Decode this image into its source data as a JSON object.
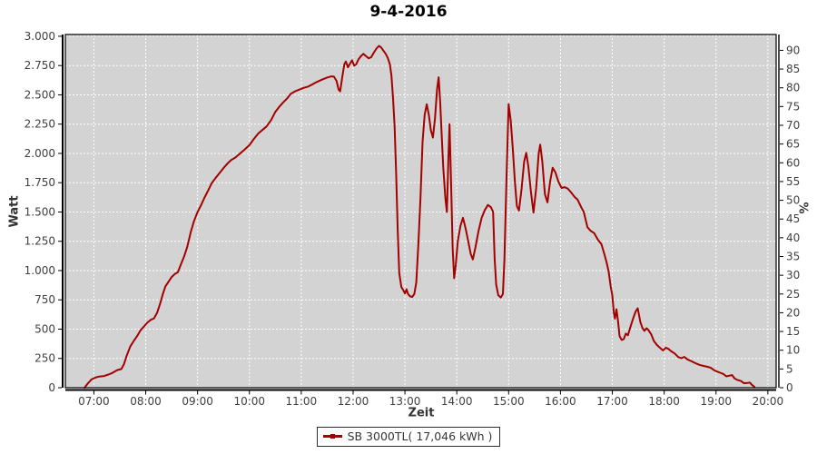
{
  "title": "9-4-2016",
  "legend": {
    "label": "SB 3000TL( 17,046 kWh )"
  },
  "chart_data": {
    "type": "line",
    "title": "9-4-2016",
    "xlabel": "Zeit",
    "ylabel_left": "Watt",
    "ylabel_right": "%",
    "legend_position": "bottom-center",
    "grid": true,
    "plot_bg": "#d3d3d3",
    "grid_color": "#ffffff",
    "axis_color": "#000000",
    "tick_text_color": "#404040",
    "series_color": "#a40000",
    "xlim": [
      6.45,
      20.16
    ],
    "ylim_watt": [
      0,
      3015
    ],
    "watt_per_percent": 32,
    "x_tick_hours": [
      7,
      8,
      9,
      10,
      11,
      12,
      13,
      14,
      15,
      16,
      17,
      18,
      19,
      20
    ],
    "x_tick_labels": [
      "07:00",
      "08:00",
      "09:00",
      "10:00",
      "11:00",
      "12:00",
      "13:00",
      "14:00",
      "15:00",
      "16:00",
      "17:00",
      "18:00",
      "19:00",
      "20:00"
    ],
    "y_tick_watts": [
      0,
      250,
      500,
      750,
      1000,
      1250,
      1500,
      1750,
      2000,
      2250,
      2500,
      2750,
      3000
    ],
    "y_tick_watt_labels": [
      "0",
      "250",
      "500",
      "750",
      "1.000",
      "1.250",
      "1.500",
      "1.750",
      "2.000",
      "2.250",
      "2.500",
      "2.750",
      "3.000"
    ],
    "y_tick_percents": [
      0,
      5,
      10,
      15,
      20,
      25,
      30,
      35,
      40,
      45,
      50,
      55,
      60,
      65,
      70,
      75,
      80,
      85,
      90
    ],
    "series": [
      {
        "name": "SB 3000TL( 17,046 kWh )",
        "color": "#a40000",
        "points": [
          [
            6.82,
            0
          ],
          [
            6.88,
            35
          ],
          [
            6.95,
            70
          ],
          [
            7.02,
            85
          ],
          [
            7.1,
            95
          ],
          [
            7.2,
            100
          ],
          [
            7.28,
            112
          ],
          [
            7.35,
            125
          ],
          [
            7.45,
            150
          ],
          [
            7.53,
            160
          ],
          [
            7.58,
            200
          ],
          [
            7.63,
            270
          ],
          [
            7.7,
            350
          ],
          [
            7.77,
            400
          ],
          [
            7.84,
            445
          ],
          [
            7.9,
            490
          ],
          [
            7.97,
            525
          ],
          [
            8.03,
            555
          ],
          [
            8.1,
            580
          ],
          [
            8.16,
            592
          ],
          [
            8.22,
            640
          ],
          [
            8.28,
            720
          ],
          [
            8.33,
            800
          ],
          [
            8.38,
            865
          ],
          [
            8.44,
            905
          ],
          [
            8.5,
            945
          ],
          [
            8.56,
            970
          ],
          [
            8.62,
            985
          ],
          [
            8.68,
            1055
          ],
          [
            8.74,
            1120
          ],
          [
            8.8,
            1200
          ],
          [
            8.87,
            1330
          ],
          [
            8.93,
            1420
          ],
          [
            9.0,
            1500
          ],
          [
            9.07,
            1560
          ],
          [
            9.13,
            1620
          ],
          [
            9.2,
            1680
          ],
          [
            9.27,
            1745
          ],
          [
            9.33,
            1780
          ],
          [
            9.42,
            1830
          ],
          [
            9.5,
            1875
          ],
          [
            9.58,
            1915
          ],
          [
            9.65,
            1945
          ],
          [
            9.73,
            1965
          ],
          [
            9.82,
            2000
          ],
          [
            9.9,
            2030
          ],
          [
            10.0,
            2070
          ],
          [
            10.08,
            2120
          ],
          [
            10.17,
            2170
          ],
          [
            10.25,
            2200
          ],
          [
            10.33,
            2230
          ],
          [
            10.42,
            2285
          ],
          [
            10.5,
            2355
          ],
          [
            10.58,
            2400
          ],
          [
            10.65,
            2435
          ],
          [
            10.73,
            2470
          ],
          [
            10.8,
            2510
          ],
          [
            10.88,
            2530
          ],
          [
            10.97,
            2545
          ],
          [
            11.05,
            2560
          ],
          [
            11.13,
            2570
          ],
          [
            11.22,
            2590
          ],
          [
            11.3,
            2610
          ],
          [
            11.4,
            2630
          ],
          [
            11.5,
            2648
          ],
          [
            11.58,
            2658
          ],
          [
            11.63,
            2655
          ],
          [
            11.68,
            2620
          ],
          [
            11.72,
            2545
          ],
          [
            11.75,
            2530
          ],
          [
            11.79,
            2650
          ],
          [
            11.83,
            2760
          ],
          [
            11.86,
            2785
          ],
          [
            11.9,
            2735
          ],
          [
            11.94,
            2765
          ],
          [
            11.98,
            2795
          ],
          [
            12.02,
            2750
          ],
          [
            12.06,
            2760
          ],
          [
            12.1,
            2800
          ],
          [
            12.15,
            2830
          ],
          [
            12.2,
            2850
          ],
          [
            12.25,
            2830
          ],
          [
            12.3,
            2812
          ],
          [
            12.35,
            2822
          ],
          [
            12.4,
            2860
          ],
          [
            12.45,
            2895
          ],
          [
            12.5,
            2918
          ],
          [
            12.54,
            2905
          ],
          [
            12.58,
            2880
          ],
          [
            12.63,
            2850
          ],
          [
            12.67,
            2815
          ],
          [
            12.71,
            2760
          ],
          [
            12.74,
            2665
          ],
          [
            12.77,
            2480
          ],
          [
            12.8,
            2230
          ],
          [
            12.83,
            1830
          ],
          [
            12.86,
            1350
          ],
          [
            12.89,
            980
          ],
          [
            12.93,
            860
          ],
          [
            12.97,
            830
          ],
          [
            13.0,
            805
          ],
          [
            13.03,
            840
          ],
          [
            13.06,
            800
          ],
          [
            13.1,
            780
          ],
          [
            13.14,
            775
          ],
          [
            13.18,
            800
          ],
          [
            13.22,
            900
          ],
          [
            13.26,
            1230
          ],
          [
            13.3,
            1620
          ],
          [
            13.34,
            2100
          ],
          [
            13.38,
            2330
          ],
          [
            13.42,
            2420
          ],
          [
            13.46,
            2330
          ],
          [
            13.5,
            2200
          ],
          [
            13.54,
            2135
          ],
          [
            13.58,
            2300
          ],
          [
            13.62,
            2550
          ],
          [
            13.65,
            2650
          ],
          [
            13.68,
            2440
          ],
          [
            13.71,
            2150
          ],
          [
            13.74,
            1880
          ],
          [
            13.78,
            1620
          ],
          [
            13.81,
            1500
          ],
          [
            13.84,
            2000
          ],
          [
            13.86,
            2250
          ],
          [
            13.89,
            1750
          ],
          [
            13.92,
            1200
          ],
          [
            13.95,
            935
          ],
          [
            13.98,
            1050
          ],
          [
            14.02,
            1250
          ],
          [
            14.07,
            1380
          ],
          [
            14.12,
            1450
          ],
          [
            14.17,
            1360
          ],
          [
            14.22,
            1250
          ],
          [
            14.27,
            1140
          ],
          [
            14.31,
            1095
          ],
          [
            14.36,
            1200
          ],
          [
            14.42,
            1340
          ],
          [
            14.48,
            1450
          ],
          [
            14.54,
            1515
          ],
          [
            14.6,
            1560
          ],
          [
            14.66,
            1540
          ],
          [
            14.7,
            1500
          ],
          [
            14.73,
            1100
          ],
          [
            14.76,
            880
          ],
          [
            14.8,
            790
          ],
          [
            14.85,
            770
          ],
          [
            14.89,
            800
          ],
          [
            14.92,
            1100
          ],
          [
            14.96,
            1800
          ],
          [
            15.0,
            2420
          ],
          [
            15.04,
            2280
          ],
          [
            15.08,
            2040
          ],
          [
            15.12,
            1760
          ],
          [
            15.16,
            1550
          ],
          [
            15.2,
            1512
          ],
          [
            15.25,
            1700
          ],
          [
            15.3,
            1930
          ],
          [
            15.34,
            2005
          ],
          [
            15.38,
            1890
          ],
          [
            15.43,
            1670
          ],
          [
            15.48,
            1495
          ],
          [
            15.53,
            1700
          ],
          [
            15.58,
            2000
          ],
          [
            15.61,
            2075
          ],
          [
            15.65,
            1930
          ],
          [
            15.7,
            1650
          ],
          [
            15.75,
            1582
          ],
          [
            15.8,
            1760
          ],
          [
            15.85,
            1878
          ],
          [
            15.9,
            1840
          ],
          [
            15.96,
            1760
          ],
          [
            16.02,
            1705
          ],
          [
            16.08,
            1712
          ],
          [
            16.14,
            1700
          ],
          [
            16.2,
            1670
          ],
          [
            16.27,
            1630
          ],
          [
            16.33,
            1605
          ],
          [
            16.4,
            1540
          ],
          [
            16.45,
            1500
          ],
          [
            16.52,
            1370
          ],
          [
            16.58,
            1340
          ],
          [
            16.65,
            1320
          ],
          [
            16.72,
            1265
          ],
          [
            16.79,
            1225
          ],
          [
            16.84,
            1150
          ],
          [
            16.89,
            1070
          ],
          [
            16.93,
            990
          ],
          [
            16.97,
            860
          ],
          [
            17.0,
            790
          ],
          [
            17.03,
            640
          ],
          [
            17.05,
            590
          ],
          [
            17.08,
            670
          ],
          [
            17.11,
            570
          ],
          [
            17.14,
            440
          ],
          [
            17.18,
            408
          ],
          [
            17.22,
            415
          ],
          [
            17.26,
            462
          ],
          [
            17.3,
            448
          ],
          [
            17.35,
            520
          ],
          [
            17.4,
            590
          ],
          [
            17.45,
            650
          ],
          [
            17.49,
            678
          ],
          [
            17.54,
            560
          ],
          [
            17.58,
            510
          ],
          [
            17.62,
            485
          ],
          [
            17.66,
            508
          ],
          [
            17.7,
            490
          ],
          [
            17.75,
            455
          ],
          [
            17.8,
            400
          ],
          [
            17.86,
            365
          ],
          [
            17.92,
            340
          ],
          [
            17.98,
            318
          ],
          [
            18.03,
            342
          ],
          [
            18.08,
            332
          ],
          [
            18.14,
            310
          ],
          [
            18.2,
            293
          ],
          [
            18.27,
            262
          ],
          [
            18.33,
            252
          ],
          [
            18.39,
            263
          ],
          [
            18.45,
            242
          ],
          [
            18.52,
            228
          ],
          [
            18.6,
            210
          ],
          [
            18.68,
            195
          ],
          [
            18.76,
            186
          ],
          [
            18.84,
            178
          ],
          [
            18.9,
            170
          ],
          [
            18.96,
            150
          ],
          [
            19.02,
            138
          ],
          [
            19.08,
            128
          ],
          [
            19.14,
            118
          ],
          [
            19.2,
            97
          ],
          [
            19.26,
            103
          ],
          [
            19.31,
            108
          ],
          [
            19.36,
            78
          ],
          [
            19.42,
            65
          ],
          [
            19.48,
            57
          ],
          [
            19.54,
            38
          ],
          [
            19.6,
            40
          ],
          [
            19.65,
            44
          ],
          [
            19.7,
            22
          ],
          [
            19.74,
            8
          ]
        ]
      }
    ]
  }
}
